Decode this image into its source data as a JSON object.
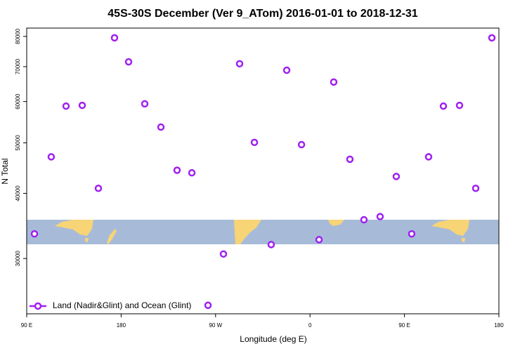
{
  "chart_data": {
    "type": "scatter",
    "title": "45S-30S December (Ver 9_ATom)   2016-01-01 to 2018-12-31",
    "x_label": "Longitude (deg E)",
    "y_label": "N Total",
    "log_y": true,
    "xlim": [
      90,
      540
    ],
    "ylim": [
      23500,
      83000
    ],
    "xticks": [
      {
        "value": 90,
        "label": "90 E"
      },
      180,
      {
        "value": 270,
        "label": "90 W"
      },
      {
        "value": 360,
        "label": "0"
      },
      {
        "value": 450,
        "label": "90 E"
      },
      {
        "value": 540,
        "label": "180"
      }
    ],
    "yticks": [
      30000,
      40000,
      50000,
      60000,
      70000,
      80000
    ],
    "legend": "bottom-left",
    "series": [
      {
        "name": "Land (Nadir&Glint) and Ocean (Glint)",
        "color": "#a020f0",
        "x": [
          97.4,
          113.4,
          127.5,
          142.9,
          158.3,
          173.7,
          187.1,
          202.5,
          217.9,
          233.3,
          247.4,
          262.8,
          277.5,
          292.9,
          307.0,
          323.0,
          337.8,
          351.9,
          368.6,
          382.6,
          398.0,
          411.4,
          426.8,
          442.2,
          456.9,
          473.0,
          487.1,
          502.5,
          517.9,
          533.3
        ],
        "values": [
          33450,
          47000,
          58800,
          59000,
          40900,
          79500,
          71500,
          59400,
          53600,
          44300,
          43800,
          24400,
          30600,
          70900,
          50100,
          31900,
          68900,
          49600,
          32600,
          65400,
          46500,
          35600,
          36100,
          43100,
          33450,
          47000,
          58800,
          59000,
          40900,
          79500
        ]
      }
    ]
  }
}
